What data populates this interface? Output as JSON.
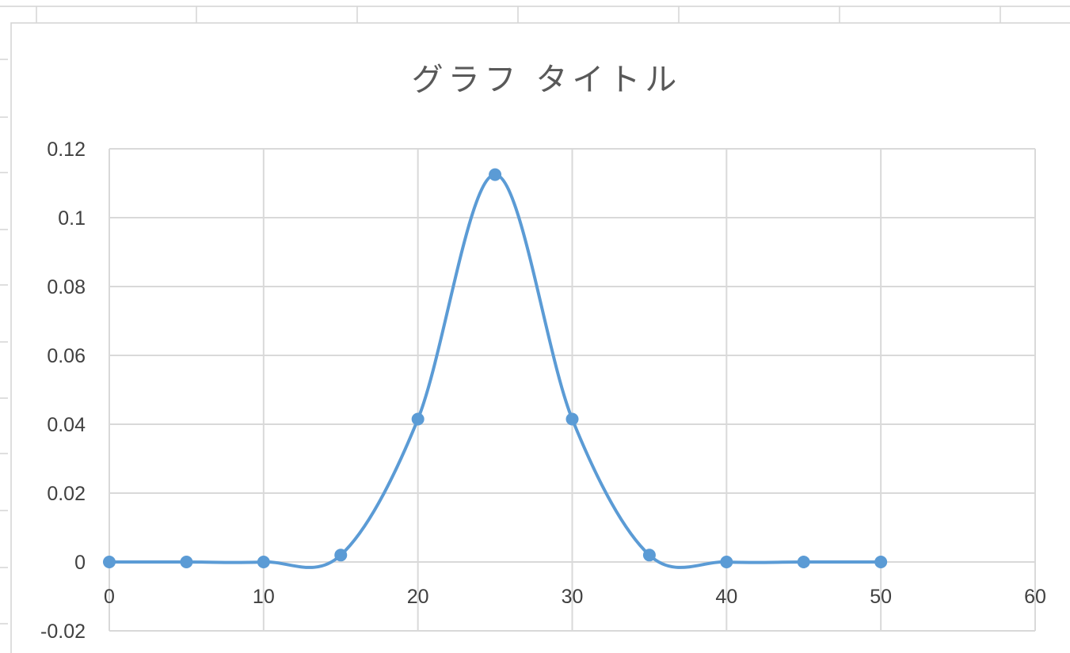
{
  "app": {
    "name": "Spreadsheet chart"
  },
  "colors": {
    "series": "#5b9bd5",
    "grid": "#d9d9d9",
    "text": "#595959",
    "sheet_grid": "#d4d4d4"
  },
  "chart_data": {
    "type": "scatter",
    "title": "グラフ タイトル",
    "xlabel": "",
    "ylabel": "",
    "smooth_line": true,
    "markers": true,
    "grid": true,
    "legend": "none",
    "xlim": [
      0,
      60
    ],
    "ylim": [
      -0.02,
      0.12
    ],
    "x_ticks": [
      0,
      10,
      20,
      30,
      40,
      50,
      60
    ],
    "x_tick_labels": [
      "0",
      "10",
      "20",
      "30",
      "40",
      "50",
      "60"
    ],
    "y_ticks": [
      -0.02,
      0,
      0.02,
      0.04,
      0.06,
      0.08,
      0.1,
      0.12
    ],
    "y_tick_labels": [
      "-0.02",
      "0",
      "0.02",
      "0.04",
      "0.06",
      "0.08",
      "0.1",
      "0.12"
    ],
    "series": [
      {
        "color": "#5b9bd5",
        "x": [
          0,
          5,
          10,
          15,
          20,
          25,
          30,
          35,
          40,
          45,
          50
        ],
        "y": [
          0.0,
          0.0,
          0.0,
          0.002,
          0.0415,
          0.1125,
          0.0415,
          0.002,
          0.0,
          0.0,
          0.0
        ]
      }
    ]
  }
}
